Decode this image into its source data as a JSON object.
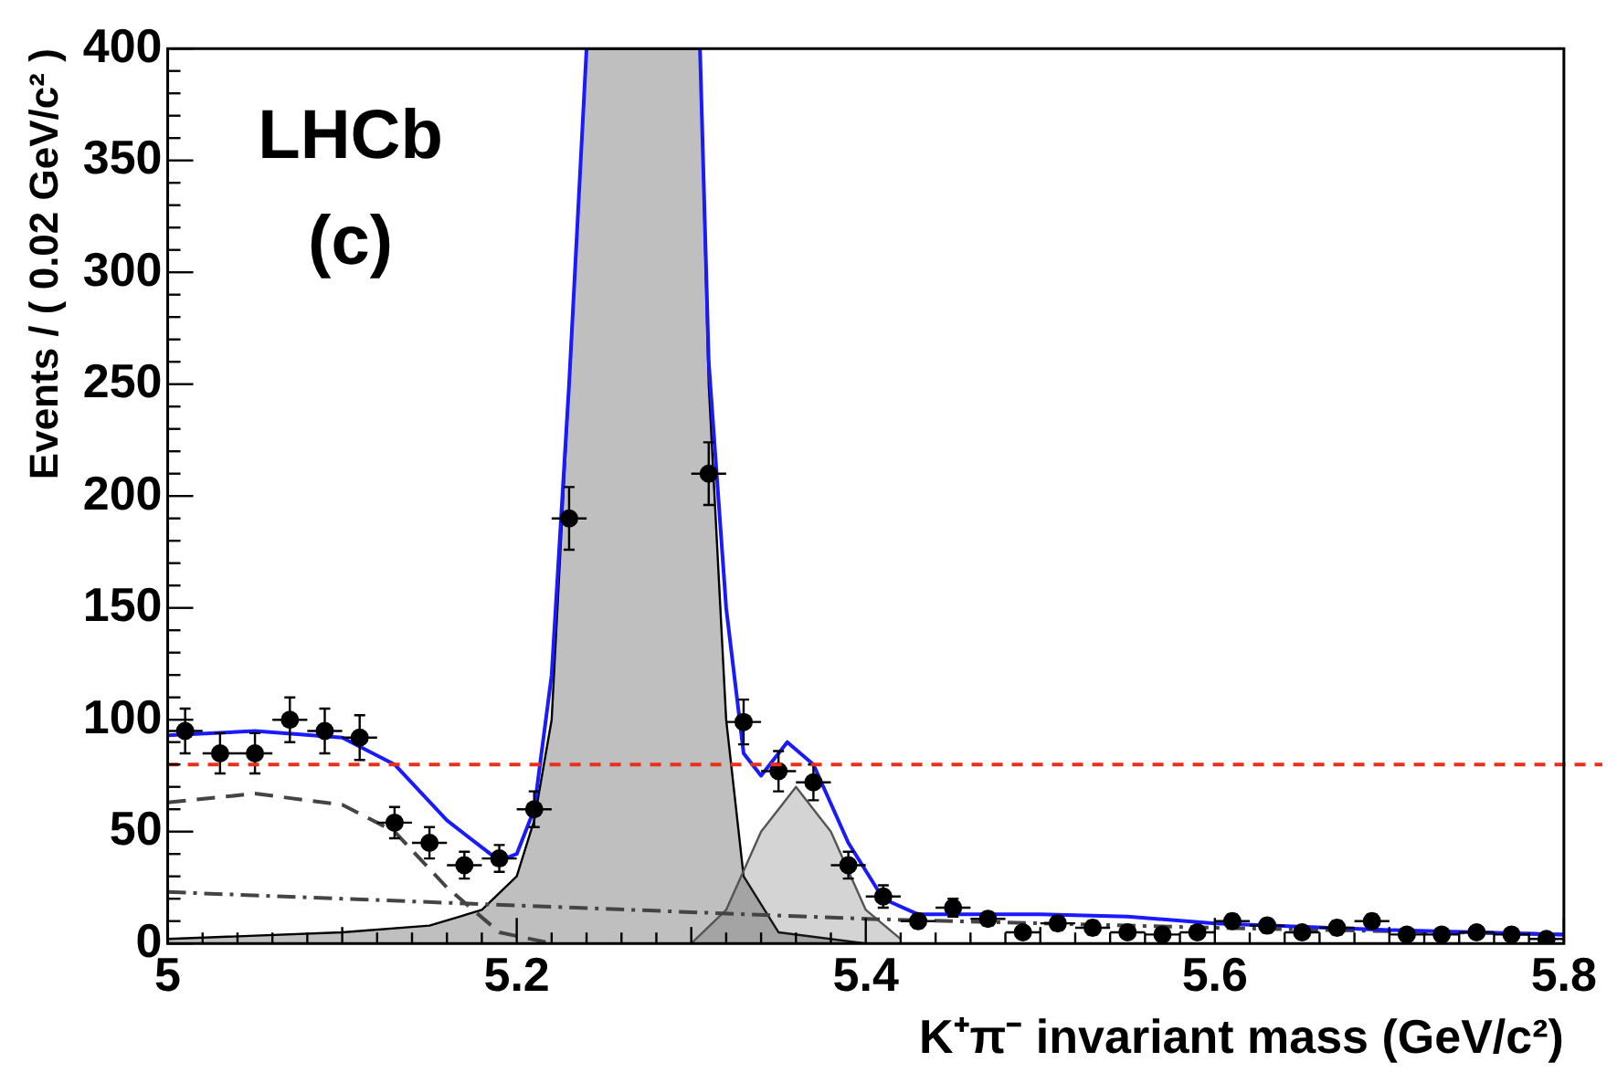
{
  "chart_data": {
    "type": "scatter",
    "xlabel": "K⁺π⁻ invariant mass (GeV/c²)",
    "ylabel": "Events / ( 0.02 GeV/c² )",
    "annotations": [
      "LHCb",
      "(c)"
    ],
    "xlim": [
      5,
      5.8
    ],
    "xticks": [
      5,
      5.2,
      5.4,
      5.6,
      5.8
    ],
    "ylim": [
      0,
      400
    ],
    "yticks": [
      0,
      50,
      100,
      150,
      200,
      250,
      300,
      350,
      400
    ],
    "grid": false,
    "legend": false,
    "ref_lines": [
      {
        "axis": "y",
        "value": 80,
        "color": "#e8301c",
        "line_style": "dashed"
      }
    ],
    "series": [
      {
        "type": "area",
        "color": "#000000",
        "line_style": "solid",
        "marker": "none",
        "x": [
          5.0,
          5.1,
          5.15,
          5.18,
          5.2,
          5.21,
          5.22,
          5.23,
          5.24,
          5.305,
          5.31,
          5.32,
          5.33,
          5.35,
          5.4
        ],
        "values": [
          2,
          5,
          8,
          15,
          30,
          55,
          100,
          250,
          400,
          400,
          250,
          100,
          30,
          5,
          0
        ]
      },
      {
        "type": "area",
        "color": "#555555",
        "line_style": "solid",
        "marker": "none",
        "x": [
          5.3,
          5.32,
          5.34,
          5.36,
          5.38,
          5.4,
          5.42
        ],
        "values": [
          0,
          15,
          50,
          70,
          50,
          15,
          2
        ]
      },
      {
        "type": "line",
        "color": "#444444",
        "line_style": "dashed",
        "marker": "none",
        "x": [
          5.0,
          5.05,
          5.1,
          5.13,
          5.16,
          5.19,
          5.22
        ],
        "values": [
          63,
          67,
          62,
          50,
          25,
          5,
          0
        ]
      },
      {
        "type": "line",
        "color": "#444444",
        "line_style": "dotted",
        "marker": "none",
        "x": [
          5.0,
          5.1,
          5.2,
          5.3,
          5.4,
          5.5,
          5.6,
          5.8
        ],
        "values": [
          23,
          20,
          17,
          14,
          11,
          9,
          7,
          4
        ]
      },
      {
        "type": "line",
        "color": "#1a1aff",
        "line_style": "solid",
        "marker": "none",
        "x": [
          5.0,
          5.05,
          5.1,
          5.13,
          5.16,
          5.19,
          5.2,
          5.21,
          5.22,
          5.23,
          5.24,
          null,
          5.305,
          5.31,
          5.32,
          5.33,
          5.34,
          5.355,
          5.37,
          5.39,
          5.41,
          5.43,
          5.5,
          5.55,
          5.6,
          5.7,
          5.8
        ],
        "values": [
          93,
          95,
          92,
          80,
          55,
          37,
          40,
          60,
          120,
          250,
          400,
          null,
          400,
          260,
          150,
          85,
          75,
          90,
          80,
          45,
          20,
          13,
          13,
          12,
          9,
          6,
          4
        ]
      },
      {
        "type": "scatter",
        "color": "#000000",
        "marker": "circle",
        "x": [
          5.01,
          5.03,
          5.05,
          5.07,
          5.09,
          5.11,
          5.13,
          5.15,
          5.17,
          5.19,
          5.21,
          5.23,
          5.25,
          5.27,
          5.29,
          5.31,
          5.33,
          5.35,
          5.37,
          5.39,
          5.41,
          5.43,
          5.45,
          5.47,
          5.49,
          5.51,
          5.53,
          5.55,
          5.57,
          5.59,
          5.61,
          5.63,
          5.65,
          5.67,
          5.69,
          5.71,
          5.73,
          5.75,
          5.77,
          5.79
        ],
        "values": [
          95,
          85,
          85,
          100,
          95,
          92,
          54,
          45,
          35,
          38,
          60,
          190,
          null,
          null,
          null,
          210,
          99,
          77,
          72,
          35,
          21,
          10,
          16,
          11,
          5,
          9,
          7,
          5,
          4,
          5,
          10,
          8,
          5,
          7,
          10,
          4,
          4,
          5,
          4,
          2
        ],
        "errors": [
          10,
          9,
          9,
          10,
          10,
          10,
          7,
          7,
          6,
          6,
          8,
          14,
          null,
          null,
          null,
          14,
          10,
          9,
          8,
          6,
          5,
          3,
          4,
          3,
          null,
          3,
          3,
          null,
          null,
          null,
          3,
          3,
          null,
          3,
          3,
          null,
          null,
          null,
          null,
          null
        ],
        "xerrors": [
          0.01,
          0.01,
          0.01,
          0.01,
          0.01,
          0.01,
          0.01,
          0.01,
          0.01,
          0.01,
          0.01,
          0.01,
          null,
          null,
          null,
          0.01,
          0.01,
          0.01,
          0.01,
          0.01,
          0.01,
          0.01,
          0.01,
          0.01,
          0.01,
          0.01,
          0.01,
          0.01,
          0.01,
          0.01,
          0.01,
          0.01,
          0.01,
          0.01,
          0.01,
          0.01,
          0.01,
          0.01,
          0.01,
          0.01
        ]
      }
    ]
  }
}
